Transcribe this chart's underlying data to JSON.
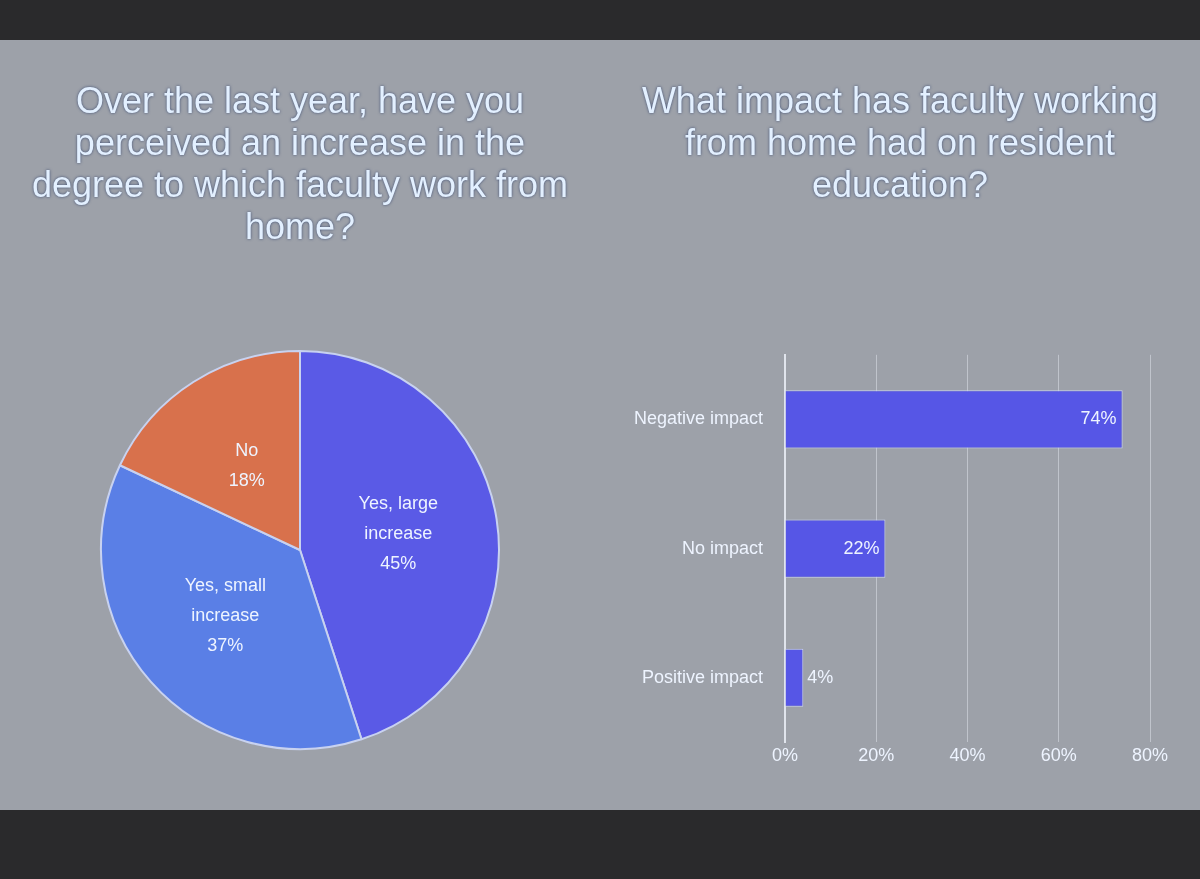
{
  "chart_data": [
    {
      "type": "pie",
      "title": "Over the last year, have you perceived an increase in the degree to which faculty work from home?",
      "categories": [
        "Yes, large increase",
        "Yes, small increase",
        "No"
      ],
      "values": [
        45,
        37,
        18
      ],
      "colors": [
        "#5a5ae6",
        "#5a7fe6",
        "#d8714c"
      ],
      "value_labels": [
        "45%",
        "37%",
        "18%"
      ]
    },
    {
      "type": "bar",
      "orientation": "horizontal",
      "title": "What impact has faculty working from home had on resident education?",
      "categories": [
        "Negative impact",
        "No impact",
        "Positive impact"
      ],
      "values": [
        74,
        22,
        4
      ],
      "color": "#5656e6",
      "value_labels": [
        "74%",
        "22%",
        "4%"
      ],
      "xlim": [
        0,
        80
      ],
      "xticks": [
        {
          "value": 0,
          "label": "0%"
        },
        {
          "value": 20,
          "label": "20%"
        },
        {
          "value": 40,
          "label": "40%"
        },
        {
          "value": 60,
          "label": "60%"
        },
        {
          "value": 80,
          "label": "80%"
        }
      ],
      "grid": "x"
    }
  ]
}
